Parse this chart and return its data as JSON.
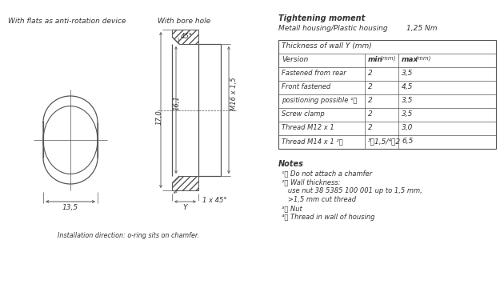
{
  "bg_color": "#ffffff",
  "title_left1": "With flats as anti-rotation device",
  "title_left2": "With bore hole",
  "tight_title": "Tightening moment",
  "tight_subtitle": "Metall housing/Plastic housing",
  "tight_value": "1,25 Nm",
  "table_header": "Thickness of wall Y (mm)",
  "table_rows": [
    [
      "Fastened from rear",
      "2",
      "3,5"
    ],
    [
      "Front fastened",
      "2",
      "4,5"
    ],
    [
      "positioning possible ¹⧩",
      "2",
      "3,5"
    ],
    [
      "Screw clamp",
      "2",
      "3,5"
    ],
    [
      "Thread M12 x 1",
      "2",
      "3,0"
    ],
    [
      "Thread M14 x 1 ²⧩",
      "³⧩1,5/⁴⧩2",
      "6,5"
    ]
  ],
  "note1": "¹⧩ Do not attach a chamfer",
  "note2": "²⧩ Wall thickness:",
  "note2a": "   use nut 38 5385 100 001 up to 1,5 mm,",
  "note2b": "   >1,5 mm cut thread",
  "note3": "³⧩ Nut",
  "note4": "⁴⧩ Thread in wall of housing",
  "dim_170": "17,0",
  "dim_161": "16,1",
  "dim_thread": "M16 x 1,5",
  "dim_135": "13,5",
  "dim_45top": "45°",
  "dim_1x45": "1 x 45°",
  "dim_Y": "Y",
  "install_note": "Installation direction: o-ring sits on chamfer.",
  "lc": "#555555",
  "tc": "#333333"
}
